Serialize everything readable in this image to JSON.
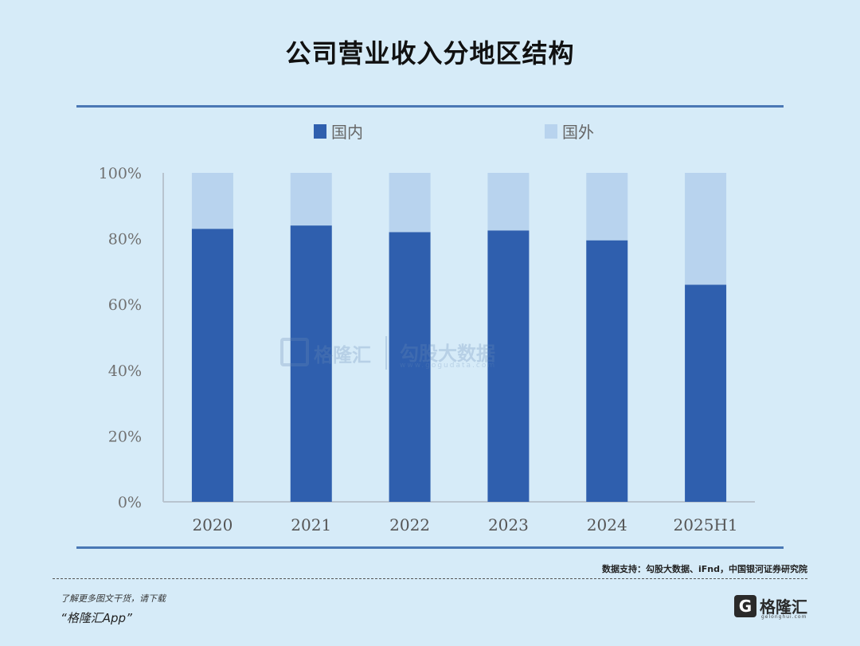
{
  "chart_data": {
    "type": "bar",
    "stacked": true,
    "title": "公司营业收入分地区结构",
    "categories": [
      "2020",
      "2021",
      "2022",
      "2023",
      "2024",
      "2025H1"
    ],
    "series": [
      {
        "name": "国内",
        "values": [
          83,
          84,
          82,
          82.5,
          79.5,
          66
        ],
        "color": "#2f5fae"
      },
      {
        "name": "国外",
        "values": [
          17,
          16,
          18,
          17.5,
          20.5,
          34
        ],
        "color": "#b8d3ee"
      }
    ],
    "ylim": [
      0,
      100
    ],
    "yticks": [
      "0%",
      "20%",
      "40%",
      "60%",
      "80%",
      "100%"
    ],
    "grid": false,
    "legend": "top-center"
  },
  "watermark": {
    "name": "格隆汇",
    "name2": "勾股大数据",
    "url": "www.gogudata.com"
  },
  "source": "数据支持：勾股大数据、iFnd，中国银河证券研究院",
  "footer": {
    "note": "了解更多图文干货，请下载",
    "app": "“格隆汇App”"
  },
  "brand": {
    "logo_letter": "G",
    "name": "格隆汇",
    "url": "gelonghui.com"
  }
}
